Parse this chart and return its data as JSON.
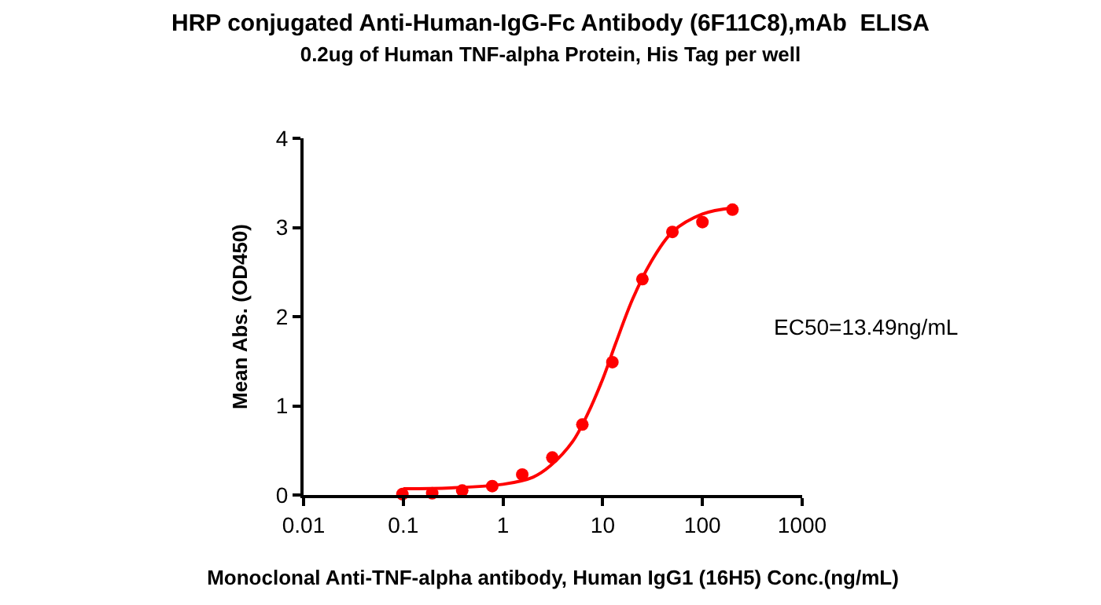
{
  "chart_data": {
    "type": "scatter",
    "title": "HRP conjugated Anti-Human-IgG-Fc Antibody (6F11C8),mAb  ELISA",
    "subtitle": "0.2ug of Human TNF-alpha Protein, His Tag per well",
    "xlabel": "Monoclonal Anti-TNF-alpha antibody, Human IgG1 (16H5) Conc.(ng/mL)",
    "ylabel": "Mean Abs. (OD450)",
    "annotations": [
      "EC50=13.49ng/mL"
    ],
    "log": "x",
    "xlim": [
      0.01,
      1000
    ],
    "xticks": [
      0.01,
      0.1,
      1,
      10,
      100,
      1000
    ],
    "ylim": [
      0,
      4
    ],
    "yticks": [
      0,
      1,
      2,
      3,
      4
    ],
    "series": [
      {
        "marker": "circle",
        "color": "#ff0000",
        "x": [
          0.098,
          0.195,
          0.39,
          0.78,
          1.56,
          3.125,
          6.25,
          12.5,
          25,
          50,
          100,
          200
        ],
        "values": [
          0.01,
          0.02,
          0.05,
          0.1,
          0.23,
          0.42,
          0.79,
          1.49,
          2.42,
          2.95,
          3.06,
          3.2
        ]
      },
      {
        "type": "line",
        "marker": "none",
        "line_style": "solid",
        "color": "#ff0000",
        "x": [
          0.1,
          0.3,
          1,
          2,
          3,
          5,
          7,
          10,
          13.49,
          20,
          30,
          50,
          100,
          200
        ],
        "values": [
          0.07,
          0.08,
          0.12,
          0.2,
          0.33,
          0.6,
          0.9,
          1.3,
          1.7,
          2.2,
          2.6,
          2.95,
          3.15,
          3.22
        ]
      }
    ]
  }
}
